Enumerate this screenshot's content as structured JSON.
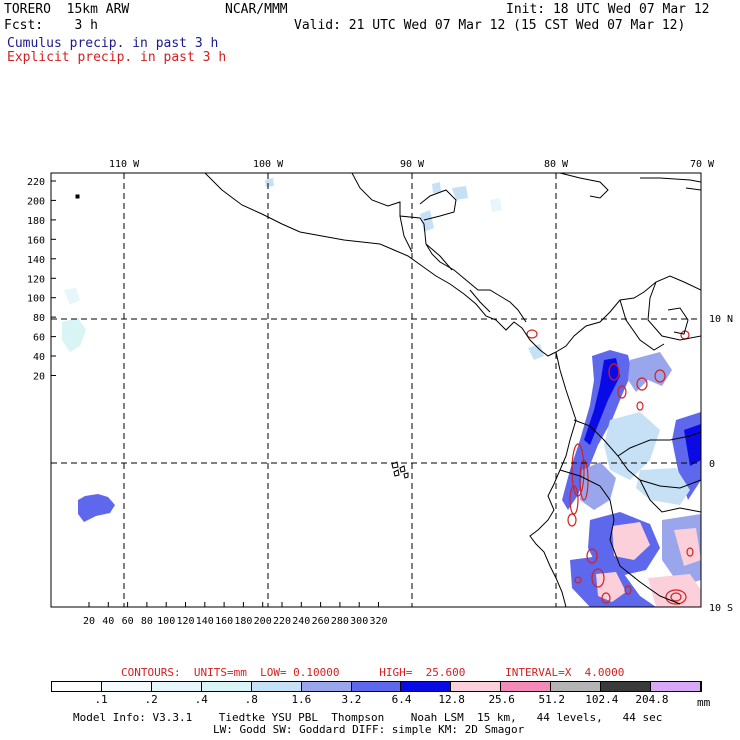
{
  "header": {
    "model": "TORERO  15km ARW",
    "org": "NCAR/MMM",
    "init": "Init: 18 UTC Wed 07 Mar 12",
    "fcst": "Fcst:    3 h",
    "valid": "Valid: 21 UTC Wed 07 Mar 12 (15 CST Wed 07 Mar 12)",
    "line1": "Cumulus precip. in past 3 h",
    "line2": "Explicit precip. in past 3 h"
  },
  "map": {
    "top_lon_labels": [
      "110 W",
      "100 W",
      "90 W",
      "80 W",
      "70 W"
    ],
    "right_lat_labels": [
      "10 N",
      "0",
      "10 S"
    ],
    "y_ticks": [
      "20",
      "40",
      "60",
      "80",
      "100",
      "120",
      "140",
      "160",
      "180",
      "200",
      "220"
    ],
    "x_ticks": [
      "20",
      "40",
      "60",
      "80",
      "100",
      "120",
      "140",
      "160",
      "180",
      "200",
      "220",
      "240",
      "260",
      "280",
      "300",
      "320"
    ]
  },
  "legend": {
    "contours_info": "CONTOURS:  UNITS=mm  LOW= 0.10000      HIGH=  25.600      INTERVAL=X  4.0000",
    "values": [
      ".1",
      ".2",
      ".4",
      ".8",
      "1.6",
      "3.2",
      "6.4",
      "12.8",
      "25.6",
      "51.2",
      "102.4",
      "204.8"
    ],
    "unit": "mm",
    "colors": [
      "#ffffff",
      "#f4fbff",
      "#e6f6fb",
      "#d8f4f4",
      "#c6e0f6",
      "#9aa6ec",
      "#5e68ec",
      "#0a0ae6",
      "#fcd0da",
      "#f48ab8",
      "#b4b4b4",
      "#3a3a3a",
      "#d8a8f8"
    ]
  },
  "footer": {
    "line1": "Model Info: V3.3.1    Tiedtke YSU PBL  Thompson    Noah LSM  15 km,   44 levels,   44 sec",
    "line2": "LW: Godd SW: Goddard DIFF: simple KM: 2D Smagor"
  }
}
